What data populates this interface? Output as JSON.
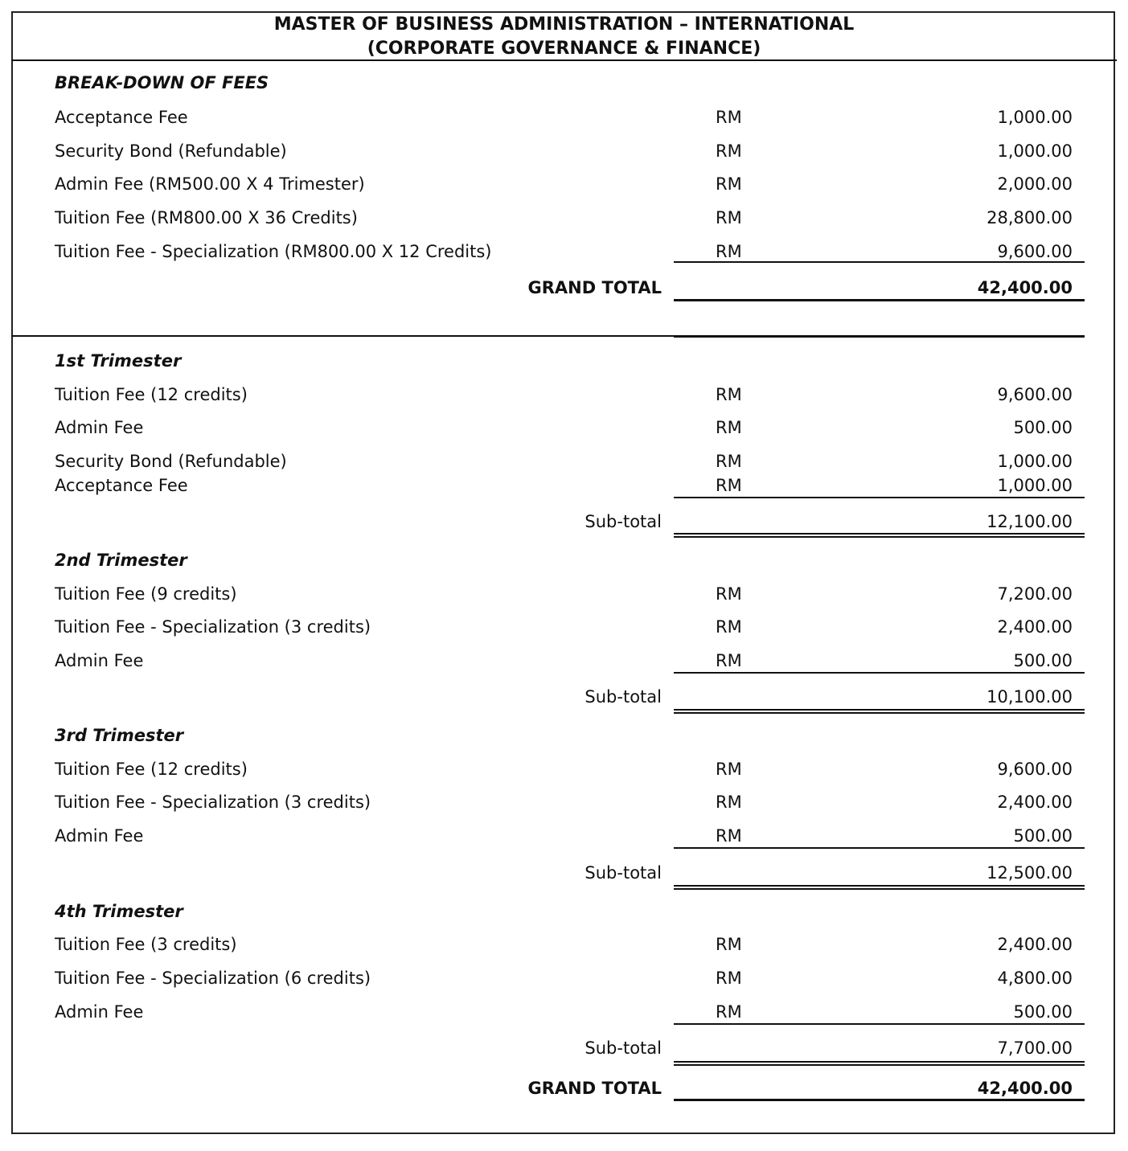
{
  "header": {
    "title_line1": "MASTER OF BUSINESS ADMINISTRATION – INTERNATIONAL",
    "title_line2": "(CORPORATE GOVERNANCE & FINANCE)"
  },
  "breakdown": {
    "heading": "BREAK-DOWN OF FEES",
    "items": [
      {
        "label": "Acceptance Fee",
        "currency": "RM",
        "amount": "1,000.00"
      },
      {
        "label": "Security Bond (Refundable)",
        "currency": "RM",
        "amount": "1,000.00"
      },
      {
        "label": "Admin Fee (RM500.00 X 4 Trimester)",
        "currency": "RM",
        "amount": "2,000.00"
      },
      {
        "label": "Tuition Fee (RM800.00 X 36 Credits)",
        "currency": "RM",
        "amount": "28,800.00"
      },
      {
        "label": "Tuition Fee - Specialization (RM800.00 X 12 Credits)",
        "currency": "RM",
        "amount": "9,600.00"
      }
    ],
    "total_label": "GRAND TOTAL",
    "total_amount": "42,400.00"
  },
  "trimesters": [
    {
      "heading": "1st Trimester",
      "items": [
        {
          "label": "Tuition Fee (12 credits)",
          "currency": "RM",
          "amount": "9,600.00"
        },
        {
          "label": "Admin Fee",
          "currency": "RM",
          "amount": "500.00"
        },
        {
          "label": "Security Bond (Refundable)",
          "currency": "RM",
          "amount": "1,000.00"
        },
        {
          "label": "Acceptance Fee",
          "currency": "RM",
          "amount": "1,000.00"
        }
      ],
      "subtotal_label": "Sub-total",
      "subtotal": "12,100.00"
    },
    {
      "heading": "2nd Trimester",
      "items": [
        {
          "label": "Tuition Fee (9 credits)",
          "currency": "RM",
          "amount": "7,200.00"
        },
        {
          "label": "Tuition Fee - Specialization (3 credits)",
          "currency": "RM",
          "amount": "2,400.00"
        },
        {
          "label": "Admin Fee",
          "currency": "RM",
          "amount": "500.00"
        }
      ],
      "subtotal_label": "Sub-total",
      "subtotal": "10,100.00"
    },
    {
      "heading": "3rd Trimester",
      "items": [
        {
          "label": "Tuition Fee (12 credits)",
          "currency": "RM",
          "amount": "9,600.00"
        },
        {
          "label": "Tuition Fee - Specialization (3 credits)",
          "currency": "RM",
          "amount": "2,400.00"
        },
        {
          "label": "Admin Fee",
          "currency": "RM",
          "amount": "500.00"
        }
      ],
      "subtotal_label": "Sub-total",
      "subtotal": "12,500.00"
    },
    {
      "heading": "4th Trimester",
      "items": [
        {
          "label": "Tuition Fee (3 credits)",
          "currency": "RM",
          "amount": "2,400.00"
        },
        {
          "label": "Tuition Fee - Specialization (6 credits)",
          "currency": "RM",
          "amount": "4,800.00"
        },
        {
          "label": "Admin Fee",
          "currency": "RM",
          "amount": "500.00"
        }
      ],
      "subtotal_label": "Sub-total",
      "subtotal": "7,700.00"
    }
  ],
  "final_total": {
    "label": "GRAND TOTAL",
    "amount": "42,400.00"
  }
}
